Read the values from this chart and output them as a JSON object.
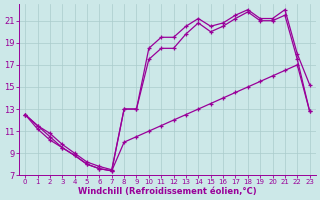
{
  "bg_color": "#cce8e8",
  "line_color": "#990099",
  "grid_color": "#aacccc",
  "xlabel": "Windchill (Refroidissement éolien,°C)",
  "xlabel_color": "#990099",
  "tick_color": "#990099",
  "xlim": [
    -0.5,
    23.5
  ],
  "ylim": [
    7,
    22.5
  ],
  "yticks": [
    7,
    9,
    11,
    13,
    15,
    17,
    19,
    21
  ],
  "xticks": [
    0,
    1,
    2,
    3,
    4,
    5,
    6,
    7,
    8,
    9,
    10,
    11,
    12,
    13,
    14,
    15,
    16,
    17,
    18,
    19,
    20,
    21,
    22,
    23
  ],
  "series1_x": [
    0,
    1,
    2,
    3,
    4,
    5,
    6,
    7,
    8,
    9,
    10,
    11,
    12,
    13,
    14,
    15,
    16,
    17,
    18,
    19,
    20,
    21,
    22,
    23
  ],
  "series1_y": [
    12.5,
    11.5,
    10.8,
    9.8,
    9.0,
    8.2,
    7.8,
    7.5,
    13.0,
    13.0,
    18.5,
    19.5,
    19.5,
    20.5,
    21.2,
    20.5,
    20.8,
    21.5,
    22.0,
    21.2,
    21.2,
    22.0,
    18.0,
    15.2
  ],
  "series2_x": [
    0,
    1,
    2,
    3,
    4,
    5,
    6,
    7,
    8,
    9,
    10,
    11,
    12,
    13,
    14,
    15,
    16,
    17,
    18,
    19,
    20,
    21,
    22,
    23
  ],
  "series2_y": [
    12.5,
    11.5,
    10.5,
    9.5,
    8.8,
    8.0,
    7.6,
    7.4,
    13.0,
    13.0,
    17.5,
    18.5,
    18.5,
    19.8,
    20.8,
    20.0,
    20.5,
    21.2,
    21.8,
    21.0,
    21.0,
    21.5,
    17.5,
    12.8
  ],
  "series3_x": [
    0,
    1,
    2,
    3,
    4,
    5,
    6,
    7,
    8,
    9,
    10,
    11,
    12,
    13,
    14,
    15,
    16,
    17,
    18,
    19,
    20,
    21,
    22,
    23
  ],
  "series3_y": [
    12.5,
    11.2,
    10.2,
    9.5,
    8.8,
    8.0,
    7.6,
    7.4,
    10.0,
    10.5,
    11.0,
    11.5,
    12.0,
    12.5,
    13.0,
    13.5,
    14.0,
    14.5,
    15.0,
    15.5,
    16.0,
    16.5,
    17.0,
    12.8
  ]
}
